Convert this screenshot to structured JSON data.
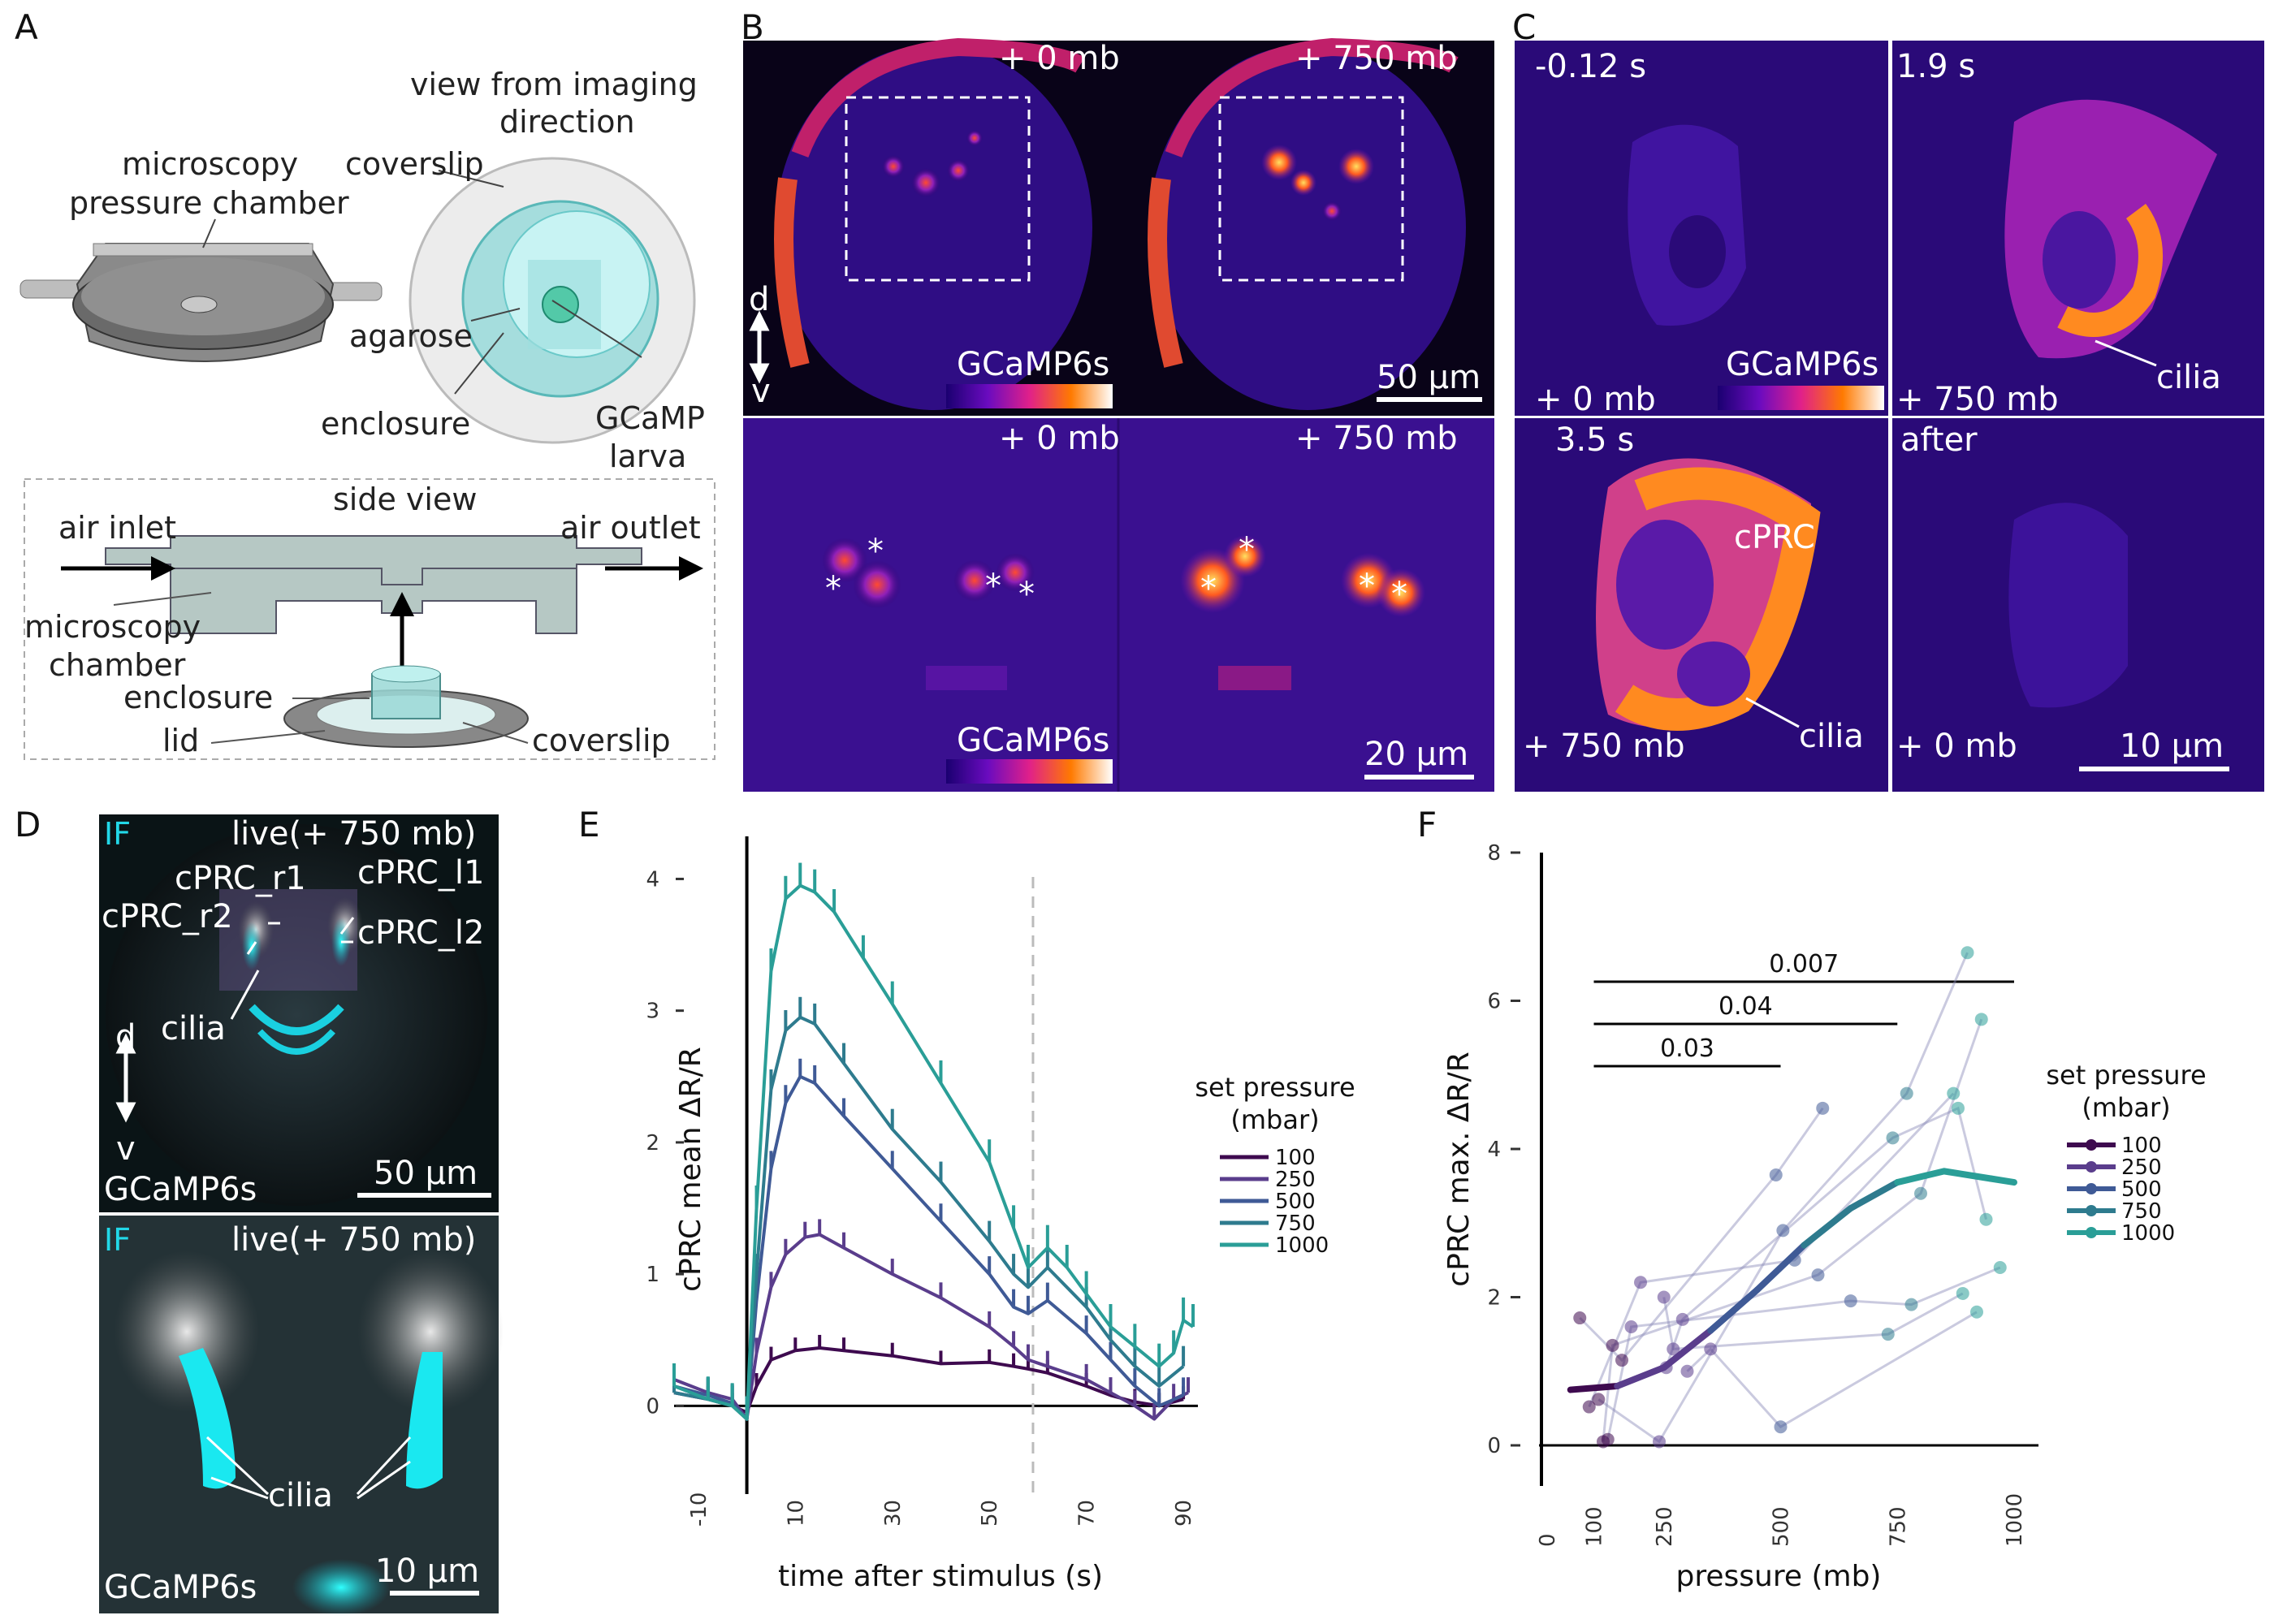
{
  "panels": {
    "A": "A",
    "B": "B",
    "C": "C",
    "D": "D",
    "E": "E",
    "F": "F"
  },
  "panel_a": {
    "view_title_1": "view from imaging",
    "view_title_2": "direction",
    "chamber_1": "microscopy",
    "chamber_2": "pressure chamber",
    "coverslip": "coverslip",
    "agarose": "agarose",
    "enclosure": "enclosure",
    "gcamp": "GCaMP",
    "larva": "larva",
    "side_view": "side view",
    "air_inlet": "air inlet",
    "air_outlet": "air outlet",
    "micro_1": "microscopy",
    "micro_2": "chamber",
    "enclosure2": "enclosure",
    "lid": "lid",
    "coverslip2": "coverslip"
  },
  "panel_b": {
    "p0": "+ 0 mb",
    "p750": "+ 750 mb",
    "d": "d",
    "v": "v",
    "gcamp": "GCaMP6s",
    "scale1": "50 µm",
    "p0b": "+ 0 mb",
    "p750b": "+ 750 mb",
    "gcamp2": "GCaMP6s",
    "scale2": "20 µm",
    "star": "*"
  },
  "panel_c": {
    "t1": "-0.12 s",
    "t2": "1.9 s",
    "t3": "3.5 s",
    "t4": "after",
    "p1": "+ 0 mb",
    "p2": "+ 750 mb",
    "p3": "+ 750 mb",
    "p4": "+ 0 mb",
    "gcamp": "GCaMP6s",
    "cilia1": "cilia",
    "cprc": "cPRC",
    "cilia2": "cilia",
    "scale": "10 µm"
  },
  "panel_d": {
    "if1": "IF",
    "live1": "live(+ 750 mb)",
    "r1": "cPRC_r1",
    "r2": "cPRC_r2",
    "l1": "cPRC_l1",
    "l2": "cPRC_l2",
    "cilia1": "cilia",
    "d": "d",
    "v": "v",
    "gcamp1": "GCaMP6s",
    "scale1": "50 µm",
    "if2": "IF",
    "live2": "live(+ 750 mb)",
    "cilia2": "cilia",
    "gcamp2": "GCaMP6s",
    "scale2": "10 µm"
  },
  "colors": {
    "p100": "#3e0a4f",
    "p250": "#5a3d8c",
    "p500": "#3f5a96",
    "p750": "#2e7b8e",
    "p1000": "#2a9e97"
  },
  "chart_data": [
    {
      "type": "line",
      "panel": "E",
      "xlabel": "time after stimulus (s)",
      "ylabel": "cPRC mean ΔR/R",
      "xlim": [
        -15,
        93
      ],
      "ylim": [
        -0.3,
        4.2
      ],
      "xticks": [
        -10,
        10,
        30,
        50,
        70,
        90
      ],
      "yticks": [
        0,
        1,
        2,
        3,
        4
      ],
      "vline": 59,
      "legend_title": [
        "set pressure",
        "(mbar)"
      ],
      "series": [
        {
          "name": "100",
          "x": [
            -15,
            -8,
            -3,
            0,
            2,
            5,
            10,
            15,
            20,
            30,
            40,
            50,
            55,
            58,
            62,
            70,
            75,
            80,
            85,
            90
          ],
          "y": [
            0.1,
            0.05,
            0.0,
            -0.05,
            0.15,
            0.35,
            0.42,
            0.44,
            0.42,
            0.38,
            0.32,
            0.33,
            0.3,
            0.28,
            0.25,
            0.15,
            0.08,
            0.03,
            0.0,
            0.05
          ]
        },
        {
          "name": "250",
          "x": [
            -15,
            -8,
            -3,
            0,
            2,
            5,
            8,
            12,
            15,
            20,
            30,
            40,
            50,
            55,
            58,
            62,
            70,
            75,
            80,
            84,
            88,
            91
          ],
          "y": [
            0.2,
            0.1,
            0.05,
            -0.1,
            0.4,
            0.9,
            1.15,
            1.28,
            1.3,
            1.2,
            1.0,
            0.82,
            0.6,
            0.45,
            0.35,
            0.3,
            0.2,
            0.1,
            0.0,
            -0.1,
            0.05,
            0.1
          ]
        },
        {
          "name": "500",
          "x": [
            -15,
            -8,
            -3,
            0,
            2,
            5,
            8,
            11,
            14,
            20,
            30,
            40,
            50,
            55,
            58,
            62,
            70,
            75,
            80,
            85,
            90
          ],
          "y": [
            0.15,
            0.08,
            0.02,
            -0.1,
            0.8,
            1.8,
            2.3,
            2.5,
            2.45,
            2.2,
            1.8,
            1.4,
            1.0,
            0.75,
            0.7,
            0.8,
            0.55,
            0.35,
            0.15,
            0.0,
            0.08
          ]
        },
        {
          "name": "750",
          "x": [
            -15,
            -8,
            -3,
            0,
            2,
            5,
            8,
            11,
            14,
            20,
            30,
            40,
            50,
            55,
            58,
            62,
            70,
            75,
            80,
            85,
            90
          ],
          "y": [
            0.1,
            0.05,
            0.0,
            -0.1,
            1.0,
            2.4,
            2.85,
            2.95,
            2.9,
            2.6,
            2.1,
            1.7,
            1.25,
            1.0,
            0.9,
            1.05,
            0.75,
            0.5,
            0.3,
            0.15,
            0.3
          ]
        },
        {
          "name": "1000",
          "x": [
            -15,
            -8,
            -3,
            0,
            2,
            5,
            8,
            11,
            14,
            18,
            24,
            30,
            40,
            50,
            55,
            58,
            62,
            66,
            70,
            75,
            80,
            85,
            88,
            90,
            92
          ],
          "y": [
            0.15,
            0.05,
            0.0,
            -0.1,
            1.5,
            3.3,
            3.85,
            3.95,
            3.9,
            3.75,
            3.4,
            3.05,
            2.45,
            1.85,
            1.35,
            1.05,
            1.2,
            1.05,
            0.85,
            0.6,
            0.45,
            0.3,
            0.4,
            0.65,
            0.6
          ]
        }
      ]
    },
    {
      "type": "scatter",
      "panel": "F",
      "xlabel": "pressure (mb)",
      "ylabel": "cPRC max. ΔR/R",
      "xlim": [
        0,
        1000
      ],
      "ylim": [
        0,
        8
      ],
      "xticks": [
        0,
        100,
        250,
        500,
        750,
        1000
      ],
      "yticks": [
        0,
        2,
        4,
        6,
        8
      ],
      "legend_title": [
        "set pressure",
        "(mbar)"
      ],
      "legend": [
        "100",
        "250",
        "500",
        "750",
        "1000"
      ],
      "points": [
        {
          "x": 70,
          "y": 1.72
        },
        {
          "x": 90,
          "y": 0.52
        },
        {
          "x": 110,
          "y": 0.62
        },
        {
          "x": 120,
          "y": 0.05
        },
        {
          "x": 130,
          "y": 0.08
        },
        {
          "x": 140,
          "y": 1.35
        },
        {
          "x": 160,
          "y": 1.15
        },
        {
          "x": 180,
          "y": 1.6
        },
        {
          "x": 200,
          "y": 2.2
        },
        {
          "x": 240,
          "y": 0.05
        },
        {
          "x": 250,
          "y": 2.0
        },
        {
          "x": 255,
          "y": 1.05
        },
        {
          "x": 270,
          "y": 1.3
        },
        {
          "x": 290,
          "y": 1.7
        },
        {
          "x": 300,
          "y": 1.0
        },
        {
          "x": 350,
          "y": 1.3
        },
        {
          "x": 490,
          "y": 3.65
        },
        {
          "x": 500,
          "y": 0.25
        },
        {
          "x": 505,
          "y": 2.9
        },
        {
          "x": 530,
          "y": 2.5
        },
        {
          "x": 580,
          "y": 2.3
        },
        {
          "x": 590,
          "y": 4.55
        },
        {
          "x": 650,
          "y": 1.95
        },
        {
          "x": 730,
          "y": 1.5
        },
        {
          "x": 740,
          "y": 4.15
        },
        {
          "x": 770,
          "y": 4.75
        },
        {
          "x": 780,
          "y": 1.9
        },
        {
          "x": 800,
          "y": 3.4
        },
        {
          "x": 870,
          "y": 4.75
        },
        {
          "x": 880,
          "y": 4.55
        },
        {
          "x": 890,
          "y": 2.05
        },
        {
          "x": 900,
          "y": 6.65
        },
        {
          "x": 920,
          "y": 1.8
        },
        {
          "x": 930,
          "y": 5.75
        },
        {
          "x": 940,
          "y": 3.05
        },
        {
          "x": 970,
          "y": 2.4
        }
      ],
      "trend": {
        "x": [
          50,
          150,
          250,
          350,
          450,
          550,
          650,
          750,
          850,
          950,
          1000
        ],
        "y": [
          0.75,
          0.8,
          1.05,
          1.55,
          2.1,
          2.7,
          3.2,
          3.55,
          3.7,
          3.6,
          3.55
        ]
      },
      "significance": [
        {
          "label": "0.03",
          "from": 100,
          "to": 500
        },
        {
          "label": "0.04",
          "from": 100,
          "to": 750
        },
        {
          "label": "0.007",
          "from": 100,
          "to": 1000
        }
      ]
    }
  ]
}
